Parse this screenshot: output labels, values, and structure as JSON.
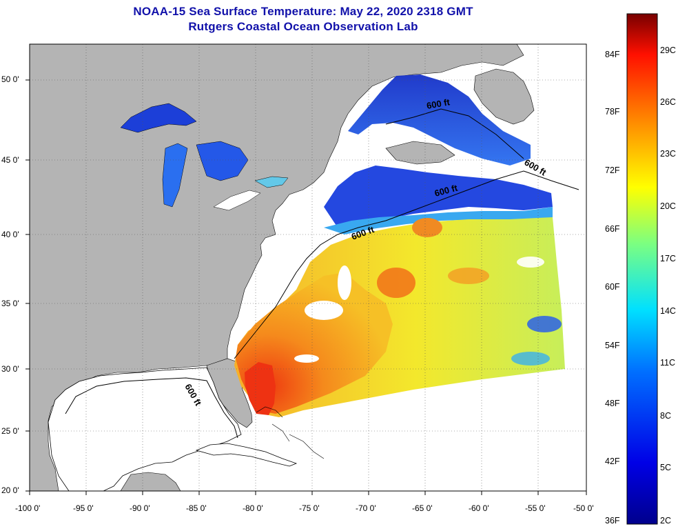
{
  "header": {
    "title": "NOAA-15 Sea Surface Temperature:  May 22, 2020 2318 GMT",
    "subtitle": "Rutgers Coastal Ocean Observation Lab"
  },
  "map": {
    "lat_labels": [
      "50 0'",
      "45 0'",
      "40 0'",
      "35 0'",
      "30 0'",
      "25 0'",
      "20 0'"
    ],
    "lon_labels": [
      "-100 0'",
      "-95 0'",
      "-90 0'",
      "-85 0'",
      "-80 0'",
      "-75 0'",
      "-70 0'",
      "-65 0'",
      "-60 0'",
      "-55 0'",
      "-50 0'"
    ],
    "contour_label": "600 ft",
    "colors": {
      "land": "#b4b4b4",
      "ocean_nodata": "#ffffff",
      "cold": "#1e3fdc",
      "warm": "#f04a10",
      "title": "#1111aa"
    }
  },
  "colorbar": {
    "fahrenheit": [
      "84F",
      "78F",
      "72F",
      "66F",
      "60F",
      "54F",
      "48F",
      "42F",
      "36F"
    ],
    "celsius": [
      "29C",
      "26C",
      "23C",
      "20C",
      "17C",
      "14C",
      "11C",
      "8C",
      "5C",
      "2C"
    ]
  }
}
